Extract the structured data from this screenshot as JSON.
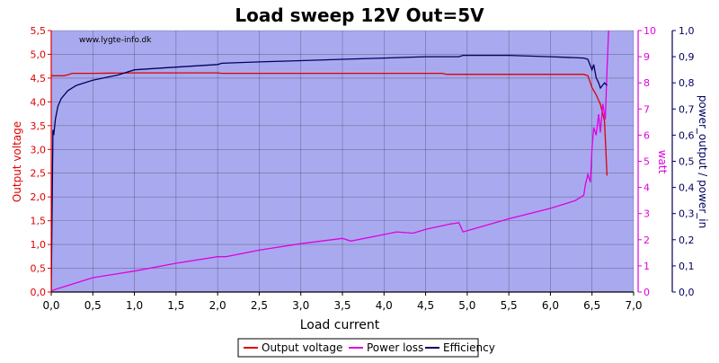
{
  "chart_data": {
    "type": "line",
    "title": "Load sweep 12V Out=5V",
    "watermark": "www.lygte-info.dk",
    "xlabel": "Load current",
    "xlim": [
      0,
      7
    ],
    "xticks": [
      "0,0",
      "0,5",
      "1,0",
      "1,5",
      "2,0",
      "2,5",
      "3,0",
      "3,5",
      "4,0",
      "4,5",
      "5,0",
      "5,5",
      "6,0",
      "6,5",
      "7,0"
    ],
    "y_left": {
      "label": "Output voltage",
      "color": "#e00000",
      "lim": [
        0,
        5.5
      ],
      "ticks": [
        "0,0",
        "0,5",
        "1,0",
        "1,5",
        "2,0",
        "2,5",
        "3,0",
        "3,5",
        "4,0",
        "4,5",
        "5,0",
        "5,5"
      ]
    },
    "y_right1": {
      "label": "watt",
      "color": "#e000e0",
      "lim": [
        0,
        10
      ],
      "ticks": [
        "0",
        "1",
        "2",
        "3",
        "4",
        "5",
        "6",
        "7",
        "8",
        "9",
        "10"
      ]
    },
    "y_right2": {
      "label": "power_output / power_in",
      "color": "#000060",
      "lim": [
        0,
        1
      ],
      "ticks": [
        "0,0",
        "0,1",
        "0,2",
        "0,3",
        "0,4",
        "0,5",
        "0,6",
        "0,7",
        "0,8",
        "0,9",
        "1,0"
      ]
    },
    "plot_background": "#a9a9ef",
    "grid": true,
    "legend_position": "bottom",
    "series": [
      {
        "name": "Output voltage",
        "axis": "left",
        "color": "#e00000",
        "x": [
          0.0,
          0.15,
          0.2,
          0.25,
          0.5,
          1.0,
          2.0,
          2.05,
          3.0,
          4.0,
          4.7,
          4.75,
          5.5,
          6.4,
          6.45,
          6.5,
          6.55,
          6.6,
          6.65,
          6.68
        ],
        "y": [
          4.55,
          4.55,
          4.57,
          4.6,
          4.6,
          4.61,
          4.61,
          4.6,
          4.6,
          4.6,
          4.6,
          4.58,
          4.58,
          4.58,
          4.55,
          4.3,
          4.15,
          3.95,
          3.6,
          2.45
        ]
      },
      {
        "name": "Power loss",
        "axis": "right1",
        "color": "#e000e0",
        "x": [
          0.0,
          0.2,
          0.5,
          1.0,
          1.5,
          2.0,
          2.1,
          2.5,
          3.0,
          3.5,
          3.6,
          4.0,
          4.15,
          4.35,
          4.5,
          4.8,
          4.9,
          4.95,
          5.5,
          6.0,
          6.3,
          6.4,
          6.42,
          6.45,
          6.48,
          6.5,
          6.52,
          6.55,
          6.58,
          6.6,
          6.63,
          6.66,
          6.68,
          6.7
        ],
        "y": [
          0.05,
          0.25,
          0.55,
          0.8,
          1.1,
          1.35,
          1.35,
          1.6,
          1.85,
          2.05,
          1.95,
          2.2,
          2.3,
          2.25,
          2.4,
          2.6,
          2.65,
          2.3,
          2.8,
          3.2,
          3.5,
          3.7,
          4.1,
          4.5,
          4.2,
          5.5,
          6.3,
          6.0,
          6.8,
          6.1,
          7.2,
          6.6,
          8.5,
          10.0
        ]
      },
      {
        "name": "Efficiency",
        "axis": "right2",
        "color": "#000060",
        "x": [
          0.0,
          0.02,
          0.03,
          0.05,
          0.08,
          0.12,
          0.2,
          0.3,
          0.5,
          0.8,
          1.0,
          1.5,
          2.0,
          2.05,
          2.5,
          3.0,
          3.5,
          4.0,
          4.5,
          4.9,
          4.95,
          5.5,
          6.0,
          6.4,
          6.45,
          6.5,
          6.52,
          6.55,
          6.58,
          6.6,
          6.65,
          6.68
        ],
        "y": [
          0.0,
          0.62,
          0.6,
          0.66,
          0.71,
          0.74,
          0.77,
          0.79,
          0.81,
          0.83,
          0.85,
          0.86,
          0.87,
          0.875,
          0.88,
          0.885,
          0.89,
          0.895,
          0.9,
          0.9,
          0.905,
          0.905,
          0.9,
          0.895,
          0.89,
          0.85,
          0.87,
          0.82,
          0.8,
          0.78,
          0.8,
          0.79
        ]
      }
    ]
  }
}
